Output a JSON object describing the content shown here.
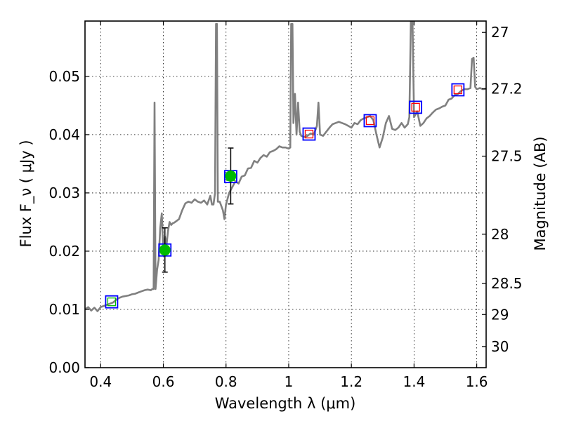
{
  "chart_data": {
    "type": "line",
    "xlabel": "Wavelength  λ (μm)",
    "ylabel": "Flux  F_ν  ( μJy )",
    "y2label": "Magnitude (AB)",
    "xlim": [
      0.35,
      1.63
    ],
    "ylim": [
      0.0,
      0.0595
    ],
    "grid": true,
    "x_ticks": [
      {
        "value": 0.4,
        "label": "0.4"
      },
      {
        "value": 0.6,
        "label": "0.6"
      },
      {
        "value": 0.8,
        "label": "0.8"
      },
      {
        "value": 1.0,
        "label": "1"
      },
      {
        "value": 1.2,
        "label": "1.2"
      },
      {
        "value": 1.4,
        "label": "1.4"
      },
      {
        "value": 1.6,
        "label": "1.6"
      }
    ],
    "y_ticks": [
      {
        "value": 0.0,
        "label": "0.00"
      },
      {
        "value": 0.01,
        "label": "0.01"
      },
      {
        "value": 0.02,
        "label": "0.02"
      },
      {
        "value": 0.03,
        "label": "0.03"
      },
      {
        "value": 0.04,
        "label": "0.04"
      },
      {
        "value": 0.05,
        "label": "0.05"
      }
    ],
    "y2_ticks": [
      {
        "value": 27.0,
        "label": "27"
      },
      {
        "value": 27.2,
        "label": "27.2"
      },
      {
        "value": 27.5,
        "label": "27.5"
      },
      {
        "value": 28.0,
        "label": "28"
      },
      {
        "value": 28.5,
        "label": "28.5"
      },
      {
        "value": 29.0,
        "label": "29"
      },
      {
        "value": 30.0,
        "label": "30"
      }
    ],
    "colors": {
      "spectrum": "#808080",
      "model_square": "#0000ff",
      "model_square_inner": "#ff0000",
      "observed": "#00bb00",
      "errorbar": "#000000"
    },
    "spectrum": [
      [
        0.35,
        0.01
      ],
      [
        0.36,
        0.0104
      ],
      [
        0.37,
        0.0098
      ],
      [
        0.38,
        0.0103
      ],
      [
        0.39,
        0.0097
      ],
      [
        0.4,
        0.0104
      ],
      [
        0.41,
        0.0106
      ],
      [
        0.42,
        0.0108
      ],
      [
        0.43,
        0.011
      ],
      [
        0.44,
        0.0112
      ],
      [
        0.45,
        0.0117
      ],
      [
        0.46,
        0.012
      ],
      [
        0.47,
        0.0122
      ],
      [
        0.48,
        0.0123
      ],
      [
        0.49,
        0.0124
      ],
      [
        0.5,
        0.0126
      ],
      [
        0.51,
        0.0127
      ],
      [
        0.52,
        0.0129
      ],
      [
        0.53,
        0.0131
      ],
      [
        0.54,
        0.0133
      ],
      [
        0.55,
        0.0134
      ],
      [
        0.56,
        0.0133
      ],
      [
        0.565,
        0.0135
      ],
      [
        0.569,
        0.0135
      ],
      [
        0.572,
        0.0455
      ],
      [
        0.575,
        0.0135
      ],
      [
        0.58,
        0.0168
      ],
      [
        0.585,
        0.0185
      ],
      [
        0.59,
        0.024
      ],
      [
        0.595,
        0.0265
      ],
      [
        0.6,
        0.02
      ],
      [
        0.605,
        0.0225
      ],
      [
        0.61,
        0.021
      ],
      [
        0.615,
        0.0235
      ],
      [
        0.62,
        0.025
      ],
      [
        0.625,
        0.0245
      ],
      [
        0.63,
        0.0248
      ],
      [
        0.635,
        0.0249
      ],
      [
        0.64,
        0.0251
      ],
      [
        0.65,
        0.0255
      ],
      [
        0.66,
        0.027
      ],
      [
        0.67,
        0.0282
      ],
      [
        0.68,
        0.0285
      ],
      [
        0.69,
        0.0283
      ],
      [
        0.7,
        0.0289
      ],
      [
        0.71,
        0.0285
      ],
      [
        0.72,
        0.0283
      ],
      [
        0.73,
        0.0287
      ],
      [
        0.74,
        0.028
      ],
      [
        0.75,
        0.0295
      ],
      [
        0.755,
        0.028
      ],
      [
        0.76,
        0.028
      ],
      [
        0.765,
        0.03
      ],
      [
        0.768,
        0.059
      ],
      [
        0.771,
        0.059
      ],
      [
        0.774,
        0.0285
      ],
      [
        0.78,
        0.0285
      ],
      [
        0.79,
        0.027
      ],
      [
        0.795,
        0.0255
      ],
      [
        0.8,
        0.028
      ],
      [
        0.81,
        0.03
      ],
      [
        0.82,
        0.031
      ],
      [
        0.83,
        0.032
      ],
      [
        0.84,
        0.0316
      ],
      [
        0.85,
        0.0328
      ],
      [
        0.86,
        0.033
      ],
      [
        0.87,
        0.0342
      ],
      [
        0.88,
        0.0343
      ],
      [
        0.89,
        0.0355
      ],
      [
        0.9,
        0.0352
      ],
      [
        0.91,
        0.036
      ],
      [
        0.92,
        0.0365
      ],
      [
        0.93,
        0.0362
      ],
      [
        0.94,
        0.037
      ],
      [
        0.95,
        0.0372
      ],
      [
        0.96,
        0.0375
      ],
      [
        0.97,
        0.038
      ],
      [
        0.98,
        0.0378
      ],
      [
        0.99,
        0.0378
      ],
      [
        1.0,
        0.0376
      ],
      [
        1.005,
        0.0378
      ],
      [
        1.008,
        0.059
      ],
      [
        1.012,
        0.059
      ],
      [
        1.015,
        0.042
      ],
      [
        1.02,
        0.047
      ],
      [
        1.025,
        0.04
      ],
      [
        1.03,
        0.0455
      ],
      [
        1.035,
        0.0405
      ],
      [
        1.04,
        0.0398
      ],
      [
        1.05,
        0.0396
      ],
      [
        1.06,
        0.0398
      ],
      [
        1.07,
        0.0402
      ],
      [
        1.08,
        0.04
      ],
      [
        1.09,
        0.0415
      ],
      [
        1.095,
        0.0455
      ],
      [
        1.1,
        0.04
      ],
      [
        1.11,
        0.0398
      ],
      [
        1.12,
        0.0405
      ],
      [
        1.13,
        0.0412
      ],
      [
        1.14,
        0.0418
      ],
      [
        1.15,
        0.042
      ],
      [
        1.16,
        0.0422
      ],
      [
        1.17,
        0.042
      ],
      [
        1.18,
        0.0418
      ],
      [
        1.19,
        0.0415
      ],
      [
        1.2,
        0.0412
      ],
      [
        1.21,
        0.042
      ],
      [
        1.22,
        0.0418
      ],
      [
        1.23,
        0.0425
      ],
      [
        1.24,
        0.0428
      ],
      [
        1.25,
        0.043
      ],
      [
        1.26,
        0.0432
      ],
      [
        1.27,
        0.0425
      ],
      [
        1.28,
        0.04
      ],
      [
        1.29,
        0.0378
      ],
      [
        1.3,
        0.0395
      ],
      [
        1.31,
        0.042
      ],
      [
        1.32,
        0.0432
      ],
      [
        1.33,
        0.041
      ],
      [
        1.34,
        0.0408
      ],
      [
        1.35,
        0.0412
      ],
      [
        1.36,
        0.042
      ],
      [
        1.37,
        0.0412
      ],
      [
        1.38,
        0.0418
      ],
      [
        1.385,
        0.043
      ],
      [
        1.39,
        0.0595
      ],
      [
        1.395,
        0.0595
      ],
      [
        1.4,
        0.043
      ],
      [
        1.41,
        0.044
      ],
      [
        1.42,
        0.0415
      ],
      [
        1.43,
        0.042
      ],
      [
        1.44,
        0.0428
      ],
      [
        1.45,
        0.0432
      ],
      [
        1.46,
        0.0438
      ],
      [
        1.47,
        0.0443
      ],
      [
        1.48,
        0.0445
      ],
      [
        1.49,
        0.0448
      ],
      [
        1.5,
        0.045
      ],
      [
        1.51,
        0.046
      ],
      [
        1.52,
        0.0462
      ],
      [
        1.53,
        0.0468
      ],
      [
        1.54,
        0.047
      ],
      [
        1.55,
        0.0475
      ],
      [
        1.56,
        0.0478
      ],
      [
        1.57,
        0.0478
      ],
      [
        1.58,
        0.048
      ],
      [
        1.585,
        0.053
      ],
      [
        1.59,
        0.0532
      ],
      [
        1.595,
        0.0482
      ],
      [
        1.6,
        0.0478
      ],
      [
        1.61,
        0.048
      ],
      [
        1.62,
        0.0478
      ],
      [
        1.63,
        0.0479
      ]
    ],
    "model_points": [
      {
        "x": 0.435,
        "y": 0.0113,
        "inner": "#00bb00"
      },
      {
        "x": 0.605,
        "y": 0.0202,
        "inner": "#00bb00"
      },
      {
        "x": 0.815,
        "y": 0.0328,
        "inner": "#00bb00"
      },
      {
        "x": 1.065,
        "y": 0.0401,
        "inner": "#ff0000"
      },
      {
        "x": 1.26,
        "y": 0.0424,
        "inner": "#ff0000"
      },
      {
        "x": 1.405,
        "y": 0.0447,
        "inner": "#ff0000"
      },
      {
        "x": 1.54,
        "y": 0.0477,
        "inner": "#ff0000"
      }
    ],
    "observed_points": [
      {
        "x": 0.605,
        "y": 0.0202,
        "yerr": 0.0038
      },
      {
        "x": 0.815,
        "y": 0.0329,
        "yerr": 0.0048
      }
    ]
  }
}
